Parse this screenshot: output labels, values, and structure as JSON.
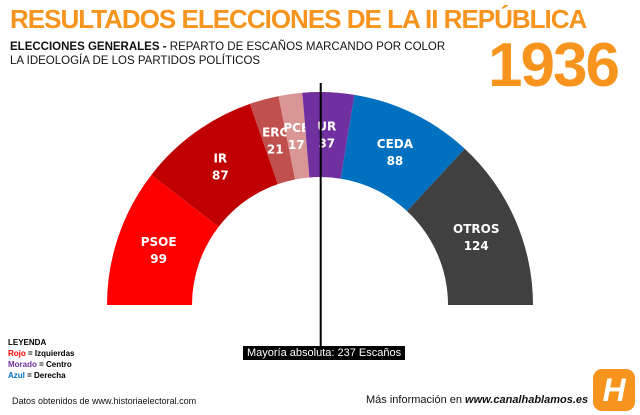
{
  "header": {
    "title": "RESULTADOS ELECCIONES DE LA II REPÚBLICA",
    "subtitle_bold": "ELECCIONES GENERALES -",
    "subtitle_rest": " REPARTO DE ESCAÑOS MARCANDO POR COLOR LA IDEOLOGÍA DE LOS PARTIDOS POLÍTICOS",
    "year": "1936"
  },
  "chart_data": {
    "type": "pie",
    "subtype": "parliament-semicircle",
    "categories": [
      "PSOE",
      "IR",
      "ERC",
      "PCE",
      "UR",
      "CEDA",
      "OTROS"
    ],
    "values": [
      99,
      87,
      21,
      17,
      37,
      88,
      124
    ],
    "colors": [
      "#ff0000",
      "#c00000",
      "#c0504d",
      "#da9694",
      "#7030a0",
      "#0070c0",
      "#404040"
    ],
    "labels": [
      {
        "name": "PSOE",
        "value": "99"
      },
      {
        "name": "IR",
        "value": "87"
      },
      {
        "name": "ERC",
        "value": "21"
      },
      {
        "name": "PCE",
        "value": "17"
      },
      {
        "name": "UR",
        "value": "37"
      },
      {
        "name": "CEDA",
        "value": "88"
      },
      {
        "name": "OTROS",
        "value": "124"
      }
    ],
    "majority": 237,
    "majority_label": "Mayoría absoluta: 237 Escaños"
  },
  "legend": {
    "title": "LEYENDA",
    "items": [
      {
        "color_word": "Rojo",
        "meaning": " = Izquierdas",
        "color": "#ff0000"
      },
      {
        "color_word": "Morado",
        "meaning": " = Centro",
        "color": "#7030a0"
      },
      {
        "color_word": "Azul",
        "meaning": " = Derecha",
        "color": "#0070c0"
      }
    ]
  },
  "footer": {
    "source": "Datos obtenidos de www.historiaelectoral.com",
    "more_prefix": "Más información en ",
    "more_link": "www.canalhablamos.es",
    "logo_letter": "H"
  }
}
